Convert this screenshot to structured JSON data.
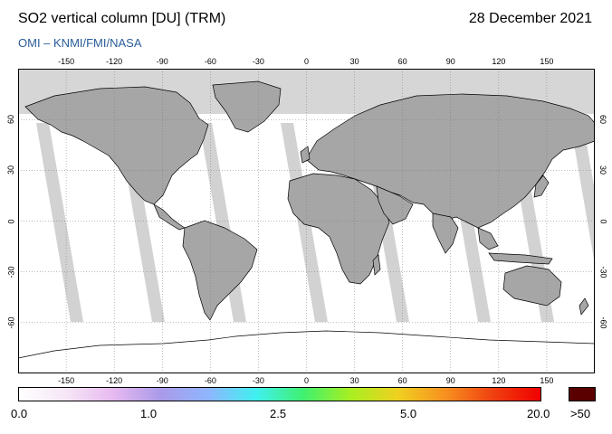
{
  "header": {
    "title": "SO2 vertical column [DU] (TRM)",
    "date": "28 December 2021",
    "credit": "OMI  –  KNMI/FMI/NASA"
  },
  "map": {
    "lon_ticks": [
      "-150",
      "-120",
      "-90",
      "-60",
      "-30",
      "0",
      "30",
      "60",
      "90",
      "120",
      "150"
    ],
    "lat_ticks": [
      "60",
      "30",
      "0",
      "-30",
      "-60"
    ],
    "colors": {
      "land": "#a6a6a6",
      "polar_no_data": "#d6d6d6",
      "swath_gap": "#d0d0d0",
      "coastline": "#000000"
    }
  },
  "colorbar": {
    "labels": [
      "0.0",
      "1.0",
      "2.5",
      "5.0",
      "20.0",
      ">50"
    ],
    "over_color": "#5a0000",
    "gradient": [
      "#ffffff",
      "#f6e6f6",
      "#e6b9f0",
      "#a99ae8",
      "#8fb6ff",
      "#40f0f0",
      "#40f070",
      "#a8ef20",
      "#f0d020",
      "#f79020",
      "#f04010",
      "#f00000"
    ]
  }
}
